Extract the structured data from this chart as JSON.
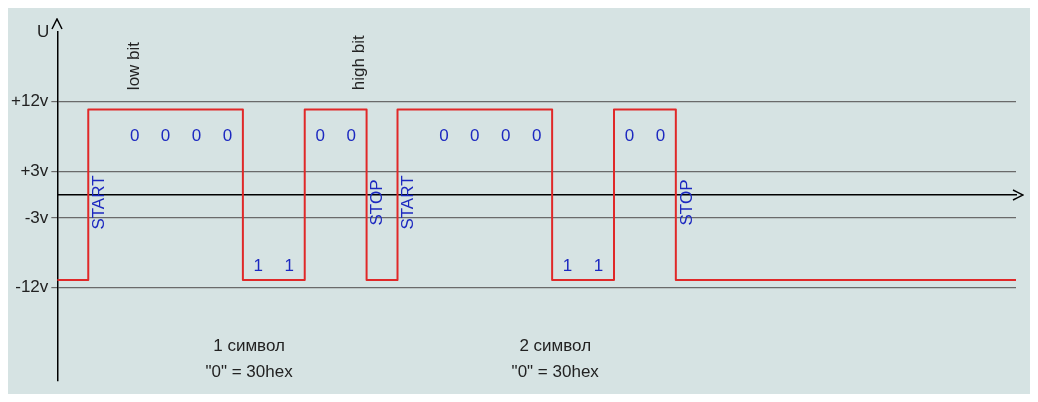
{
  "chart_data": {
    "type": "step",
    "ylabel": "U",
    "categories": [
      null,
      null,
      null,
      null,
      null,
      null,
      null,
      null,
      null,
      null,
      null,
      null,
      null,
      null,
      null,
      null,
      null,
      null,
      null,
      null,
      null,
      null,
      null,
      null,
      null,
      null,
      null,
      null,
      null,
      null,
      null,
      null
    ],
    "values": [
      -11,
      11,
      11,
      11,
      11,
      11,
      -11,
      -11,
      11,
      11,
      -11,
      11,
      11,
      11,
      11,
      11,
      -11,
      -11,
      11,
      11,
      -11,
      -11,
      -11,
      -11,
      -11,
      -11,
      -11,
      -11,
      -11,
      -11,
      -11,
      -11
    ],
    "color": "#e02828",
    "ylim": [
      -24,
      21
    ],
    "yticks": [
      {
        "value": 12,
        "label": "+12v"
      },
      {
        "value": 3,
        "label": "+3v"
      },
      {
        "value": -3,
        "label": "-3v"
      },
      {
        "value": -12,
        "label": "-12v"
      }
    ],
    "grid": "y",
    "annotations": [
      "low bit",
      "high bit",
      "1 символ\n\"0\" = 30hex",
      "2 символ\n\"0\" = 30hex",
      "START",
      "0",
      "0",
      "0",
      "0",
      "1",
      "1",
      "0",
      "0",
      "STOP",
      "START",
      "0",
      "0",
      "0",
      "0",
      "1",
      "1",
      "0",
      "0",
      "STOP"
    ]
  }
}
